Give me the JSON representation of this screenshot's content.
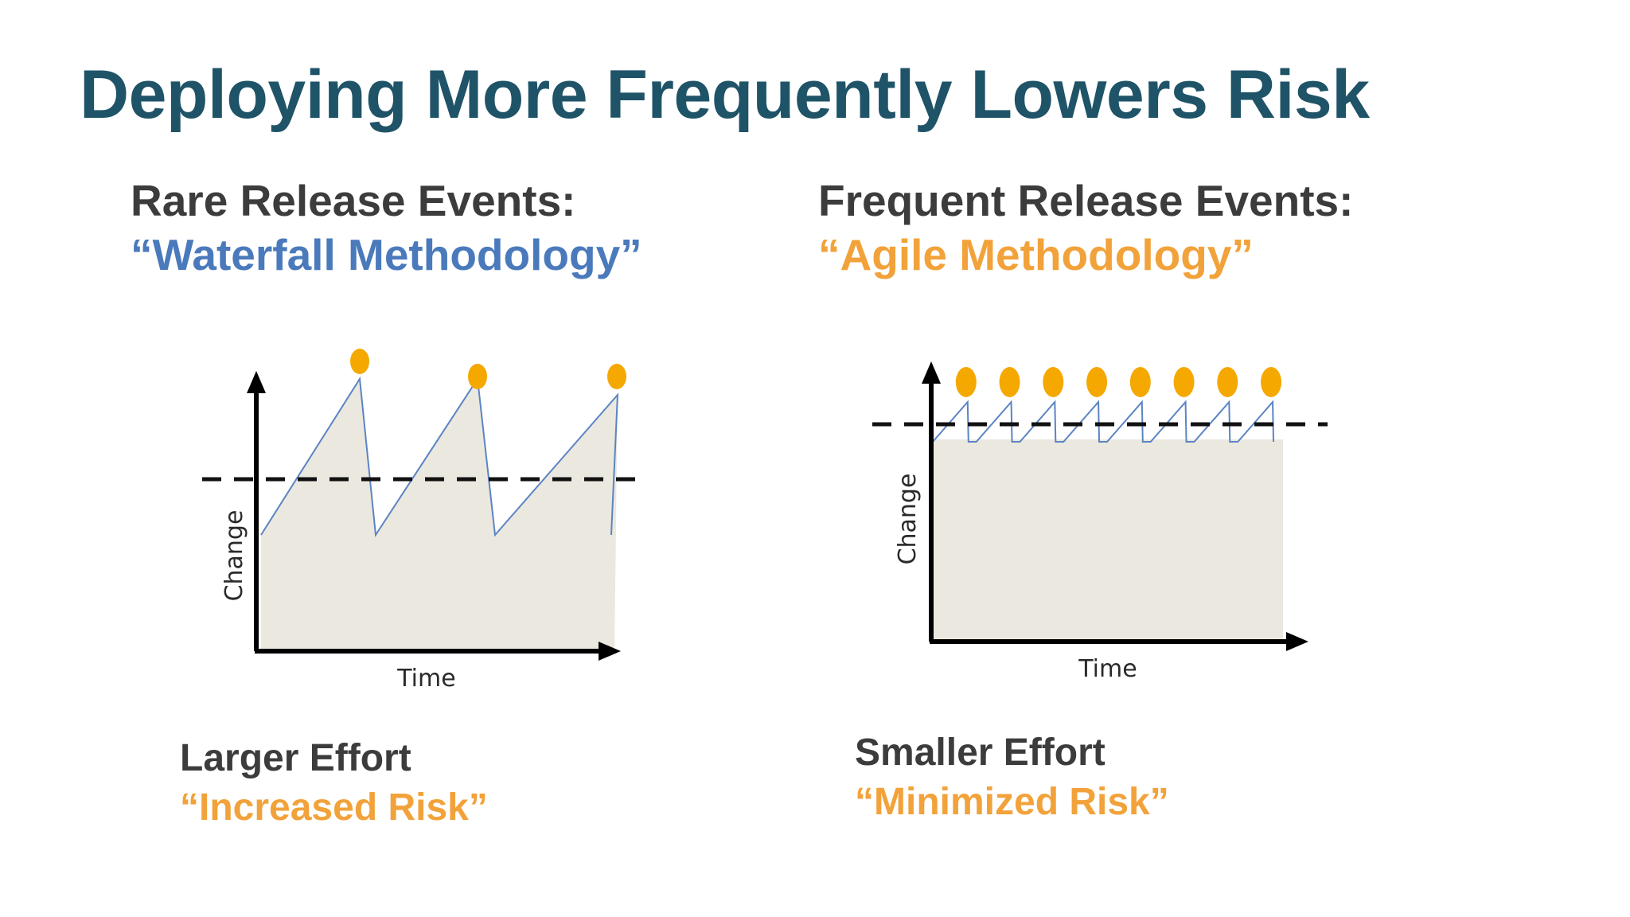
{
  "slide": {
    "title": "Deploying More Frequently Lowers Risk"
  },
  "left_panel": {
    "heading_line1": "Rare Release Events:",
    "heading_line2": "“Waterfall Methodology”",
    "footer_line1": "Larger Effort",
    "footer_line2": "“Increased Risk”"
  },
  "right_panel": {
    "heading_line1": "Frequent Release Events:",
    "heading_line2": "“Agile Methodology”",
    "footer_line1": "Smaller Effort",
    "footer_line2": "“Minimized Risk”"
  },
  "chart_data": [
    {
      "type": "line",
      "title": "Waterfall",
      "xlabel": "Time",
      "ylabel": "Change",
      "release_count": 3,
      "risk_threshold": "dashed line",
      "shape": "sawtooth, large peaks above threshold"
    },
    {
      "type": "line",
      "title": "Agile",
      "xlabel": "Time",
      "ylabel": "Change",
      "release_count": 8,
      "risk_threshold": "dashed line",
      "shape": "sawtooth, small peaks just above threshold"
    }
  ],
  "colors": {
    "title": "#1f5368",
    "dark_text": "#3c3c3c",
    "blue_text": "#4a7abb",
    "orange_text": "#f2a23a",
    "fill": "#ebe8df",
    "line": "#5b84c4",
    "release_dot": "#f5a800"
  }
}
